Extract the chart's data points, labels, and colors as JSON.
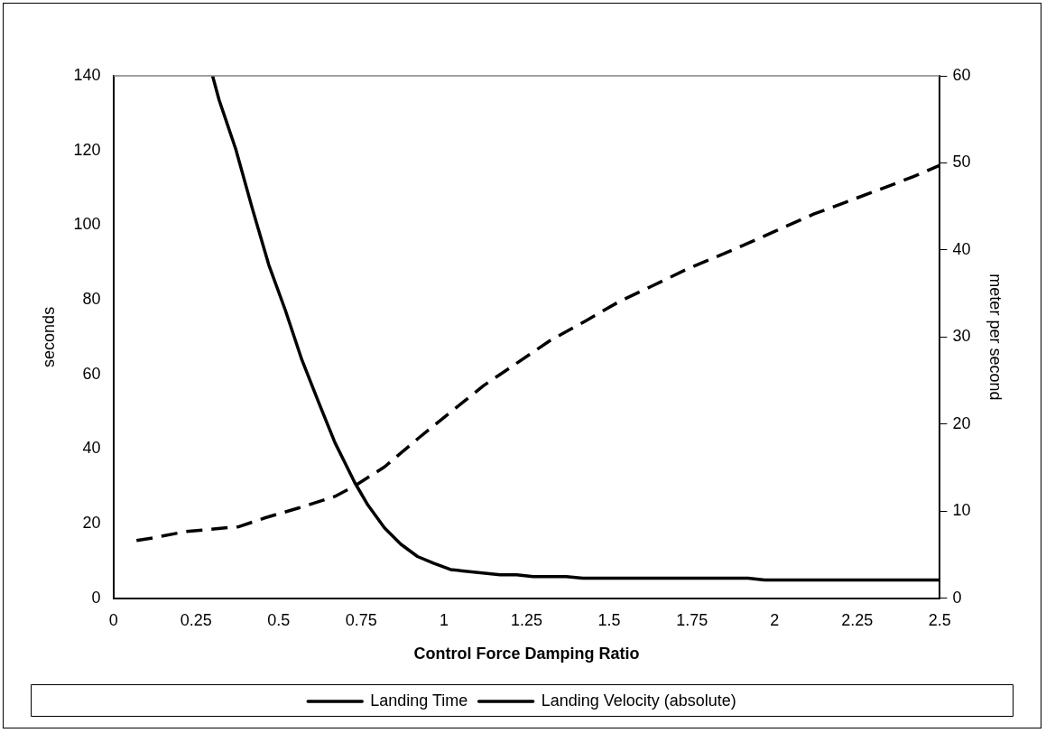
{
  "chart_data": {
    "type": "line",
    "xlabel": "Control Force Damping Ratio",
    "ylabel": "seconds",
    "y2label": "meter per second",
    "xlim": [
      0,
      2.5
    ],
    "xticks": [
      0,
      0.25,
      0.5,
      0.75,
      1,
      1.25,
      1.5,
      1.75,
      2,
      2.25,
      2.5
    ],
    "ylim": [
      0,
      140
    ],
    "yticks": [
      0,
      20,
      40,
      60,
      80,
      100,
      120,
      140
    ],
    "y2lim": [
      0,
      60
    ],
    "y2ticks": [
      0,
      10,
      20,
      30,
      40,
      50,
      60
    ],
    "legend": "bottom",
    "marker": "none",
    "series": [
      {
        "name": "Landing Time",
        "color": "#000000",
        "line_style": "dashed",
        "x": [
          0.07,
          0.12,
          0.22,
          0.38,
          0.46,
          0.56,
          0.67,
          0.73,
          0.82,
          0.92,
          1.02,
          1.12,
          1.22,
          1.32,
          1.43,
          1.53,
          1.63,
          1.73,
          1.88,
          2.0,
          2.12,
          2.22,
          2.32,
          2.42,
          2.5
        ],
        "values": [
          15.5,
          16.2,
          17.9,
          19.2,
          21.6,
          24.2,
          27.3,
          30.1,
          35.2,
          42.7,
          49.9,
          57,
          63,
          69,
          74.4,
          79.5,
          83.7,
          88,
          93.6,
          98.3,
          103,
          106.3,
          109.6,
          113,
          116
        ]
      },
      {
        "name": "Landing Velocity (absolute)",
        "color": "#000000",
        "line_style": "solid",
        "axis": "y2",
        "x": [
          0.3,
          0.32,
          0.37,
          0.42,
          0.47,
          0.52,
          0.57,
          0.62,
          0.67,
          0.73,
          0.77,
          0.82,
          0.87,
          0.92,
          0.97,
          1.02,
          1.17,
          1.22,
          1.27,
          1.37,
          1.42,
          1.92,
          1.97,
          2.5
        ],
        "values": [
          60,
          57.2,
          51.6,
          44.8,
          38.3,
          33.1,
          27.4,
          22.6,
          17.9,
          13.3,
          10.7,
          8.1,
          6.2,
          4.8,
          4.0,
          3.3,
          2.7,
          2.7,
          2.5,
          2.5,
          2.3,
          2.3,
          2.1,
          2.1
        ]
      }
    ]
  }
}
